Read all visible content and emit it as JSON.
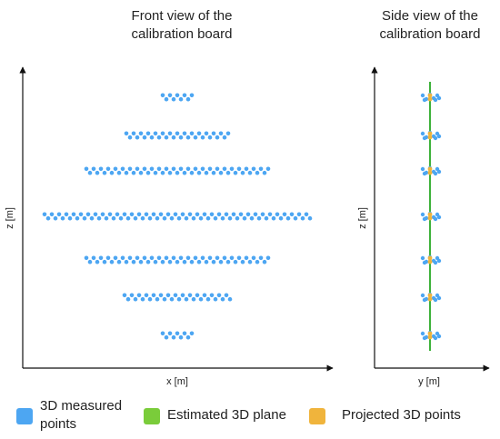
{
  "front_view": {
    "title": "Front view of the\ncalibration board",
    "xlabel": "x [m]",
    "ylabel": "z [m]"
  },
  "side_view": {
    "title": "Side view of the\ncalibration board",
    "xlabel": "y [m]",
    "ylabel": "z [m]"
  },
  "legend": [
    {
      "label": "3D measured\npoints",
      "color": "#4DA6F2"
    },
    {
      "label": "Estimated 3D plane",
      "color": "#7ACC3A"
    },
    {
      "label": "Projected 3D points",
      "color": "#F0B43C"
    }
  ],
  "colors": {
    "measured": "#4DA6F2",
    "plane": "#3DB23A",
    "projected": "#F0B43C",
    "axis": "#111111"
  },
  "board_rows": [
    {
      "row": 1,
      "points_per_row": 9
    },
    {
      "row": 2,
      "points_per_row": 29
    },
    {
      "row": 3,
      "points_per_row": 51
    },
    {
      "row": 4,
      "points_per_row": 74
    },
    {
      "row": 5,
      "points_per_row": 51
    },
    {
      "row": 6,
      "points_per_row": 30
    },
    {
      "row": 7,
      "points_per_row": 9
    }
  ]
}
